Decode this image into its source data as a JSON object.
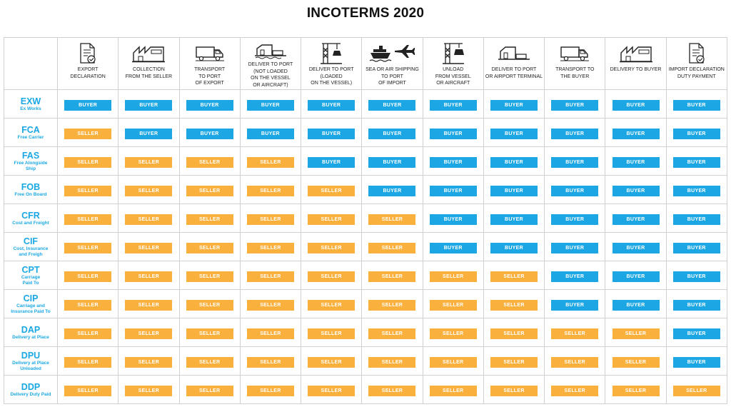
{
  "title": "INCOTERMS 2020",
  "colors": {
    "buyer": "#1ca6e3",
    "seller": "#f9b03d",
    "term": "#1aa8e4"
  },
  "columns": [
    {
      "label": "EXPORT\nDECLARATION",
      "icon": "document-check-icon"
    },
    {
      "label": "COLLECTION\nFROM THE SELLER",
      "icon": "factory-icon"
    },
    {
      "label": "TRANSPORT\nTO PORT\nOF EXPORT",
      "icon": "truck-icon"
    },
    {
      "label": "DELIVER TO PORT\n(NOT LOADED\nON THE VESSEL\nOR AIRCRAFT)",
      "icon": "port-building-icon"
    },
    {
      "label": "DELIVER TO PORT\n(LOADED\nON THE VESSEL)",
      "icon": "crane-icon"
    },
    {
      "label": "SEA OR AIR SHIPPING\nTO PORT\nOF IMPORT",
      "icon": "ship-plane-icon"
    },
    {
      "label": "UNLOAD\nFROM VESSEL\nOR AIRCRAFT",
      "icon": "crane-unload-icon"
    },
    {
      "label": "DELIVER TO PORT\nOR AIRPORT TERMINAL",
      "icon": "terminal-building-icon"
    },
    {
      "label": "TRANSPORT TO\nTHE BUYER",
      "icon": "truck-icon"
    },
    {
      "label": "DELIVERY TO BUYER",
      "icon": "factory-icon"
    },
    {
      "label": "IMPORT DECLARATION\nDUTY PAYMENT",
      "icon": "document-check-icon"
    }
  ],
  "party_labels": {
    "B": "BUYER",
    "S": "SELLER"
  },
  "rows": [
    {
      "code": "EXW",
      "name": "Ex Works",
      "cells": [
        "B",
        "B",
        "B",
        "B",
        "B",
        "B",
        "B",
        "B",
        "B",
        "B",
        "B"
      ]
    },
    {
      "code": "FCA",
      "name": "Free Carrier",
      "cells": [
        "S",
        "B",
        "B",
        "B",
        "B",
        "B",
        "B",
        "B",
        "B",
        "B",
        "B"
      ]
    },
    {
      "code": "FAS",
      "name": "Free Alongside\nShip",
      "cells": [
        "S",
        "S",
        "S",
        "S",
        "B",
        "B",
        "B",
        "B",
        "B",
        "B",
        "B"
      ]
    },
    {
      "code": "FOB",
      "name": "Free On Board",
      "cells": [
        "S",
        "S",
        "S",
        "S",
        "S",
        "B",
        "B",
        "B",
        "B",
        "B",
        "B"
      ]
    },
    {
      "code": "CFR",
      "name": "Cost and Freight",
      "cells": [
        "S",
        "S",
        "S",
        "S",
        "S",
        "S",
        "B",
        "B",
        "B",
        "B",
        "B"
      ]
    },
    {
      "code": "CIF",
      "name": "Cost, Insurance\nand Freigh",
      "cells": [
        "S",
        "S",
        "S",
        "S",
        "S",
        "S",
        "B",
        "B",
        "B",
        "B",
        "B"
      ]
    },
    {
      "code": "CPT",
      "name": "Carriage\nPaid To",
      "cells": [
        "S",
        "S",
        "S",
        "S",
        "S",
        "S",
        "S",
        "S",
        "B",
        "B",
        "B"
      ]
    },
    {
      "code": "CIP",
      "name": "Carriage and\nInsurance Paid To",
      "cells": [
        "S",
        "S",
        "S",
        "S",
        "S",
        "S",
        "S",
        "S",
        "B",
        "B",
        "B"
      ]
    },
    {
      "code": "DAP",
      "name": "Delivery at Place",
      "cells": [
        "S",
        "S",
        "S",
        "S",
        "S",
        "S",
        "S",
        "S",
        "S",
        "S",
        "B"
      ]
    },
    {
      "code": "DPU",
      "name": "Delivery at Place\nUnloaded",
      "cells": [
        "S",
        "S",
        "S",
        "S",
        "S",
        "S",
        "S",
        "S",
        "S",
        "S",
        "B"
      ]
    },
    {
      "code": "DDP",
      "name": "Delivery Duty Paid",
      "cells": [
        "S",
        "S",
        "S",
        "S",
        "S",
        "S",
        "S",
        "S",
        "S",
        "S",
        "S"
      ]
    }
  ]
}
